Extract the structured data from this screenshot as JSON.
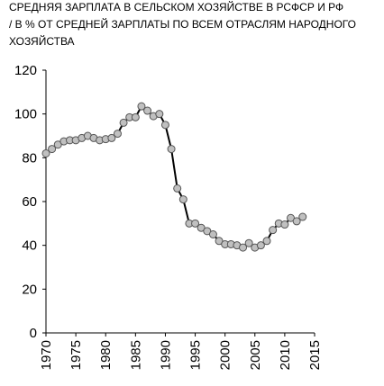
{
  "chart_data": {
    "type": "line",
    "title_lines": [
      "СРЕДНЯЯ ЗАРПЛАТА В СЕЛЬСКОМ ХОЗЯЙСТВЕ В  РСФСР И  РФ",
      "/  В  %  ОТ СРЕДНЕЙ ЗАРПЛАТЫ ПО ВСЕМ ОТРАСЛЯМ НАРОДНОГО",
      "ХОЗЯЙСТВА"
    ],
    "xlabel": "",
    "ylabel": "",
    "xlim": [
      1970,
      2015
    ],
    "ylim": [
      0,
      120
    ],
    "x_ticks": [
      1970,
      1975,
      1980,
      1985,
      1990,
      1995,
      2000,
      2005,
      2010,
      2015
    ],
    "y_ticks": [
      0,
      20,
      40,
      60,
      80,
      100,
      120
    ],
    "grid": false,
    "legend": "none",
    "series": [
      {
        "color": "#000000",
        "marker_fill": "#c0c0c0",
        "marker_stroke": "#555555",
        "x": [
          1970,
          1971,
          1972,
          1973,
          1974,
          1975,
          1976,
          1977,
          1978,
          1979,
          1980,
          1981,
          1982,
          1983,
          1984,
          1985,
          1986,
          1987,
          1988,
          1989,
          1990,
          1991,
          1992,
          1993,
          1994,
          1995,
          1996,
          1997,
          1998,
          1999,
          2000,
          2001,
          2002,
          2003,
          2004,
          2005,
          2006,
          2007,
          2008,
          2009,
          2010,
          2011,
          2012,
          2013
        ],
        "y": [
          82,
          84,
          86,
          87.5,
          88,
          88,
          89,
          90,
          89,
          88,
          88.5,
          89,
          91,
          96,
          98.5,
          98.5,
          103.5,
          101.5,
          99,
          100,
          95,
          84,
          66,
          61,
          50,
          50,
          48,
          46.5,
          45,
          42,
          40.5,
          40.5,
          40,
          39,
          41,
          39,
          40,
          42,
          47,
          50,
          49.5,
          52.5,
          51,
          53
        ]
      }
    ]
  }
}
